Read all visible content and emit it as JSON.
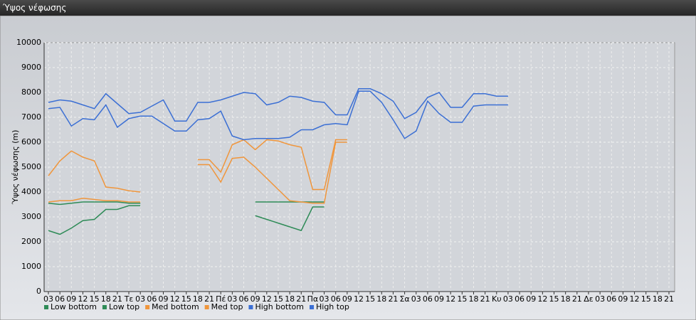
{
  "chart_data": {
    "type": "line",
    "title": "Ύψος νέφωσης",
    "y_label": "Ύψος νέφωσης (m)",
    "categories": [
      "03",
      "06",
      "09",
      "12",
      "15",
      "18",
      "21",
      "Τε",
      "03",
      "06",
      "09",
      "12",
      "15",
      "18",
      "21",
      "Πέ",
      "03",
      "06",
      "09",
      "12",
      "15",
      "18",
      "21",
      "Πα",
      "03",
      "06",
      "09",
      "12",
      "15",
      "18",
      "21",
      "Σα",
      "03",
      "06",
      "09",
      "12",
      "15",
      "18",
      "21",
      "Κυ",
      "03",
      "06",
      "09",
      "12",
      "15",
      "18",
      "21",
      "Δε",
      "03",
      "06",
      "09",
      "12",
      "15",
      "18",
      "21"
    ],
    "series": [
      {
        "name": "Low bottom",
        "color": "#2e8b57",
        "values": [
          2450,
          2300,
          2550,
          2850,
          2900,
          3300,
          3300,
          3450,
          3450,
          null,
          null,
          null,
          null,
          null,
          null,
          null,
          null,
          null,
          3050,
          2900,
          2750,
          2600,
          2450,
          3400,
          3400,
          null,
          null,
          null,
          null,
          null,
          null,
          null,
          null,
          null,
          null,
          null,
          null,
          null,
          null,
          null,
          null,
          null,
          null,
          null,
          null,
          null,
          null,
          null,
          null,
          null,
          null,
          null,
          null,
          null,
          null
        ]
      },
      {
        "name": "Low top",
        "color": "#2e8b57",
        "values": [
          3550,
          3500,
          3550,
          3600,
          3600,
          3600,
          3600,
          3550,
          3550,
          null,
          null,
          null,
          null,
          null,
          null,
          null,
          null,
          null,
          3600,
          3600,
          3600,
          3600,
          3600,
          3600,
          3600,
          null,
          null,
          null,
          null,
          null,
          null,
          null,
          null,
          null,
          null,
          null,
          null,
          null,
          null,
          null,
          null,
          null,
          null,
          null,
          null,
          null,
          null,
          null,
          null,
          null,
          null,
          null,
          null,
          null,
          null
        ]
      },
      {
        "name": "Med bottom",
        "color": "#f0963c",
        "values": [
          3600,
          3650,
          3650,
          3750,
          3700,
          3650,
          3650,
          3600,
          3600,
          null,
          null,
          null,
          null,
          5100,
          5100,
          4400,
          5350,
          5400,
          5000,
          4550,
          4100,
          3650,
          3600,
          3550,
          3550,
          6000,
          6000,
          null,
          null,
          null,
          null,
          null,
          null,
          null,
          null,
          null,
          null,
          null,
          null,
          null,
          null,
          null,
          null,
          null,
          null,
          null,
          null,
          null,
          null,
          null,
          null,
          null,
          null,
          null,
          null
        ]
      },
      {
        "name": "Med top",
        "color": "#f0963c",
        "values": [
          4650,
          5250,
          5650,
          5400,
          5250,
          4200,
          4150,
          4050,
          4000,
          null,
          null,
          null,
          null,
          5300,
          5300,
          4800,
          5900,
          6100,
          5700,
          6100,
          6050,
          5900,
          5800,
          4100,
          4100,
          6100,
          6100,
          null,
          null,
          null,
          null,
          null,
          null,
          null,
          null,
          null,
          null,
          null,
          null,
          null,
          null,
          null,
          null,
          null,
          null,
          null,
          null,
          null,
          null,
          null,
          null,
          null,
          null,
          null,
          null
        ]
      },
      {
        "name": "High bottom",
        "color": "#3b6fd4",
        "values": [
          7350,
          7400,
          6650,
          6950,
          6900,
          7500,
          6600,
          6950,
          7050,
          7050,
          6750,
          6450,
          6450,
          6900,
          6950,
          7250,
          6250,
          6100,
          6150,
          6150,
          6150,
          6200,
          6500,
          6500,
          6700,
          6750,
          6700,
          8050,
          8050,
          7600,
          6900,
          6150,
          6450,
          7650,
          7150,
          6800,
          6800,
          7450,
          7500,
          7500,
          7500,
          null,
          null,
          null,
          null,
          null,
          null,
          null,
          null,
          null,
          null,
          null,
          null,
          null,
          null
        ]
      },
      {
        "name": "High top",
        "color": "#3b6fd4",
        "values": [
          7600,
          7700,
          7650,
          7500,
          7350,
          7950,
          7550,
          7150,
          7200,
          7450,
          7700,
          6850,
          6850,
          7600,
          7600,
          7700,
          7850,
          8000,
          7950,
          7500,
          7600,
          7850,
          7800,
          7650,
          7600,
          7100,
          7100,
          8150,
          8150,
          7950,
          7650,
          6950,
          7200,
          7800,
          8000,
          7400,
          7400,
          7950,
          7950,
          7850,
          7850,
          null,
          null,
          null,
          null,
          null,
          null,
          null,
          null,
          null,
          null,
          null,
          null,
          null,
          null
        ]
      }
    ],
    "ylim": [
      0,
      10000
    ],
    "yticks": [
      0,
      1000,
      2000,
      3000,
      4000,
      5000,
      6000,
      7000,
      8000,
      9000,
      10000
    ],
    "grid": true
  }
}
